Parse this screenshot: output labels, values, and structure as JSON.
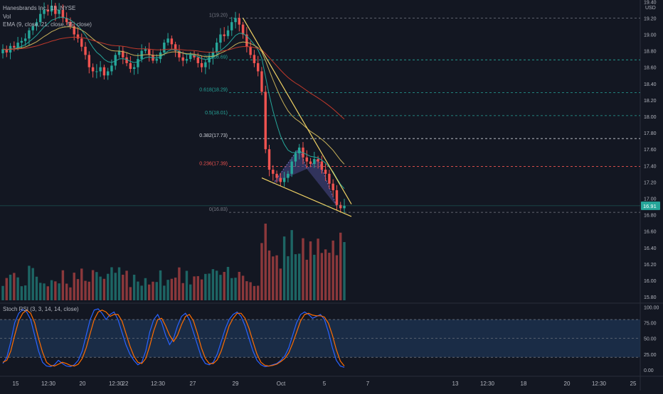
{
  "header": {
    "symbol_line": "Hanesbrands Inc., 1h, NYSE",
    "volume_label": "Vol",
    "ema_line": "EMA (9, close, 21, close, 55, close)",
    "stoch_label": "Stoch RSI (3, 3, 14, 14, close)"
  },
  "colors": {
    "background": "#131722",
    "up": "#26a69a",
    "down": "#ef5350",
    "ema_fast": "#26a69a",
    "ema_mid": "#c8b15a",
    "ema_slow": "#c0392b",
    "trendline": "#f0d264",
    "pattern_fill": "#4a4a8c",
    "stoch_k": "#2962ff",
    "stoch_d": "#ff6d00",
    "stoch_band": "#1f3a5f"
  },
  "chart_data": [
    {
      "type": "candlestick",
      "title": "Hanesbrands Inc., 1h, NYSE",
      "price_axis": {
        "unit": "USD",
        "ylim": [
          15.74,
          19.42
        ],
        "ticks": [
          "19.40",
          "19.20",
          "19.00",
          "18.80",
          "18.60",
          "18.40",
          "18.20",
          "18.00",
          "17.80",
          "17.60",
          "17.40",
          "17.20",
          "17.00",
          "16.80",
          "16.60",
          "16.40",
          "16.20",
          "16.00",
          "15.80"
        ],
        "last_price": "16.91"
      },
      "time_axis": {
        "ticks": [
          "15",
          "12:30",
          "20",
          "12:30",
          "22",
          "12:30",
          "27",
          "29",
          "Oct",
          "5",
          "7",
          "13",
          "12:30",
          "18",
          "20",
          "12:30",
          "25"
        ]
      },
      "fib_levels": [
        {
          "label": "1(19.20)",
          "price": 19.2,
          "color": "#787b86"
        },
        {
          "label": "0.786(18.69)",
          "price": 18.69,
          "color": "#26a69a"
        },
        {
          "label": "0.618(18.29)",
          "price": 18.29,
          "color": "#26a69a"
        },
        {
          "label": "0.5(18.01)",
          "price": 18.01,
          "color": "#26a69a"
        },
        {
          "label": "0.382(17.73)",
          "price": 17.73,
          "color": "#d1d4dc"
        },
        {
          "label": "0.236(17.39)",
          "price": 17.39,
          "color": "#ef5350"
        },
        {
          "label": "0(16.83)",
          "price": 16.83,
          "color": "#787b86"
        }
      ],
      "series": [
        {
          "name": "Price",
          "values": [
            18.82,
            18.78,
            18.86,
            18.84,
            18.9,
            18.92,
            18.95,
            19.05,
            19.1,
            19.15,
            19.25,
            19.3,
            19.28,
            19.35,
            19.25,
            19.3,
            19.2,
            19.15,
            19.1,
            19.0,
            18.95,
            18.85,
            18.75,
            18.6,
            18.55,
            18.55,
            18.6,
            18.5,
            18.55,
            18.62,
            18.75,
            18.8,
            18.72,
            18.65,
            18.58,
            18.6,
            18.7,
            18.8,
            18.82,
            18.75,
            18.68,
            18.7,
            18.78,
            18.9,
            18.95,
            18.88,
            18.8,
            18.72,
            18.68,
            18.7,
            18.75,
            18.72,
            18.65,
            18.6,
            18.66,
            18.72,
            18.78,
            18.9,
            19.0,
            18.98,
            19.05,
            19.15,
            19.2,
            19.12,
            19.0,
            18.85,
            18.75,
            18.65,
            18.55,
            18.3,
            17.6,
            17.35,
            17.3,
            17.25,
            17.2,
            17.25,
            17.3,
            17.45,
            17.55,
            17.62,
            17.5,
            17.45,
            17.42,
            17.48,
            17.45,
            17.35,
            17.3,
            17.18,
            17.1,
            16.92,
            16.88,
            16.91
          ]
        }
      ]
    },
    {
      "type": "bar",
      "title": "Vol",
      "note": "volume bars (relative heights, no scale printed)"
    },
    {
      "type": "line",
      "title": "Stoch RSI (3, 3, 14, 14, close)",
      "ylim": [
        -8,
        105
      ],
      "ticks": [
        "100.00",
        "75.00",
        "50.00",
        "25.00",
        "0.00"
      ],
      "band": [
        20,
        80
      ],
      "series": [
        {
          "name": "K",
          "values": [
            10,
            20,
            45,
            75,
            90,
            96,
            92,
            80,
            55,
            30,
            12,
            6,
            5,
            8,
            15,
            10,
            6,
            5,
            8,
            15,
            30,
            55,
            80,
            95,
            97,
            90,
            80,
            88,
            92,
            80,
            60,
            40,
            25,
            15,
            8,
            12,
            30,
            60,
            80,
            88,
            75,
            55,
            40,
            50,
            70,
            85,
            90,
            80,
            60,
            40,
            20,
            10,
            8,
            12,
            25,
            45,
            65,
            80,
            88,
            92,
            85,
            70,
            50,
            30,
            15,
            8,
            5,
            6,
            8,
            10,
            15,
            22,
            35,
            55,
            75,
            88,
            92,
            88,
            82,
            85,
            88,
            80,
            60,
            35,
            15,
            6,
            4
          ]
        },
        {
          "name": "D",
          "values": [
            12,
            15,
            30,
            55,
            78,
            90,
            95,
            90,
            75,
            50,
            28,
            12,
            7,
            6,
            9,
            12,
            10,
            7,
            6,
            9,
            18,
            35,
            58,
            80,
            92,
            95,
            92,
            85,
            88,
            88,
            78,
            58,
            38,
            22,
            12,
            10,
            18,
            38,
            62,
            80,
            82,
            70,
            55,
            45,
            55,
            72,
            85,
            88,
            78,
            58,
            35,
            18,
            10,
            10,
            16,
            30,
            50,
            70,
            82,
            90,
            90,
            82,
            66,
            45,
            25,
            12,
            7,
            6,
            7,
            9,
            13,
            18,
            27,
            42,
            60,
            78,
            88,
            90,
            87,
            86,
            86,
            84,
            74,
            55,
            32,
            14,
            6
          ]
        }
      ]
    }
  ]
}
